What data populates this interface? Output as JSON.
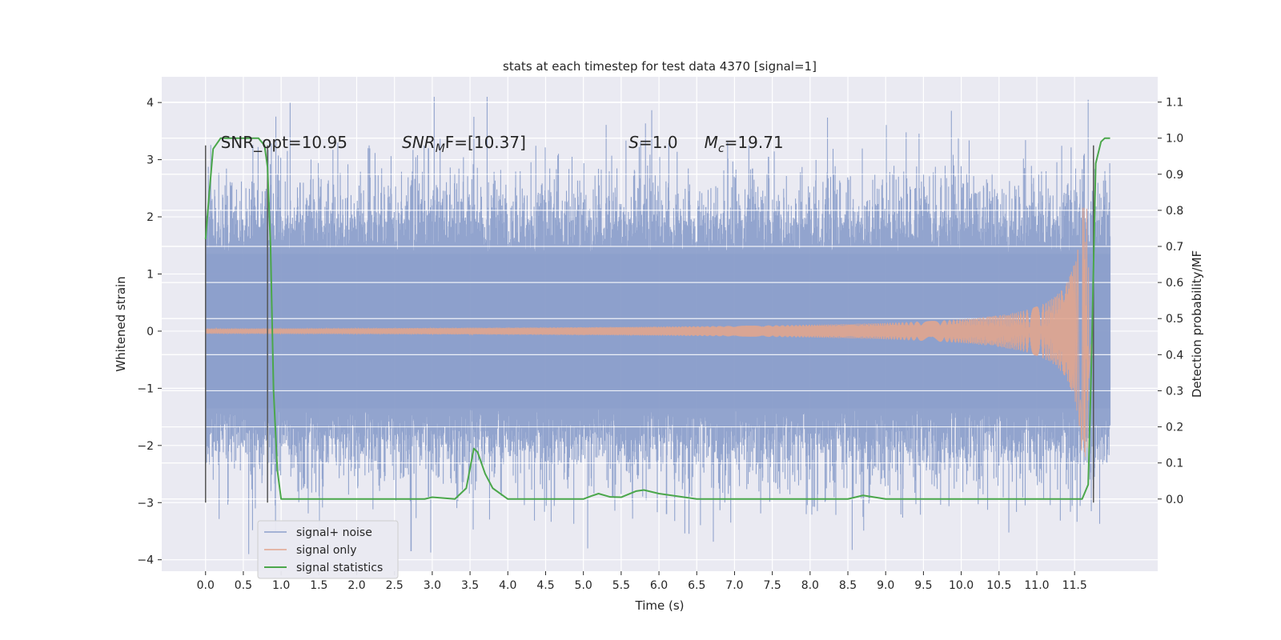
{
  "chart_data": {
    "type": "line",
    "title": "stats at each timestep for test data 4370 [signal=1]",
    "xlabel": "Time (s)",
    "ylabel": "Whitened strain",
    "ylabel_right": "Detection probability/MF",
    "xlim": [
      -0.58,
      12.6
    ],
    "ylim": [
      -4.2,
      4.45
    ],
    "ylim_right": [
      -0.2,
      1.17
    ],
    "x_ticks": [
      0.0,
      0.5,
      1.0,
      1.5,
      2.0,
      2.5,
      3.0,
      3.5,
      4.0,
      4.5,
      5.0,
      5.5,
      6.0,
      6.5,
      7.0,
      7.5,
      8.0,
      8.5,
      9.0,
      9.5,
      10.0,
      10.5,
      11.0,
      11.5
    ],
    "x_tick_labels": [
      "0.0",
      "0.5",
      "1.0",
      "1.5",
      "2.0",
      "2.5",
      "3.0",
      "3.5",
      "4.0",
      "4.5",
      "5.0",
      "5.5",
      "6.0",
      "6.5",
      "7.0",
      "7.5",
      "8.0",
      "8.5",
      "9.0",
      "9.5",
      "10.0",
      "10.5",
      "11.0",
      "11.5"
    ],
    "y_ticks": [
      -4,
      -3,
      -2,
      -1,
      0,
      1,
      2,
      3,
      4
    ],
    "y_tick_labels": [
      "−4",
      "−3",
      "−2",
      "−1",
      "0",
      "1",
      "2",
      "3",
      "4"
    ],
    "y_ticks_right": [
      0.0,
      0.1,
      0.2,
      0.3,
      0.4,
      0.5,
      0.6,
      0.7,
      0.8,
      0.9,
      1.0,
      1.1
    ],
    "y_tick_labels_right": [
      "0.0",
      "0.1",
      "0.2",
      "0.3",
      "0.4",
      "0.5",
      "0.6",
      "0.7",
      "0.8",
      "0.9",
      "1.0",
      "1.1"
    ],
    "grid": true,
    "legend_position": "lower-left",
    "annotations": [
      {
        "text": "SNR_opt=10.95",
        "x": 0.2,
        "y": 3.3
      },
      {
        "text": "SNR",
        "sub": "M",
        "rest": "F=[10.37]",
        "x": 2.6,
        "y": 3.3
      },
      {
        "text": "S",
        "rest": "=1.0",
        "x": 5.6,
        "y": 3.3
      },
      {
        "text": "M",
        "sub": "c",
        "rest": "=19.71",
        "x": 6.6,
        "y": 3.3
      }
    ],
    "series": [
      {
        "name": "signal+ noise",
        "color": "#8da0cb",
        "kind": "noise",
        "x_range": [
          0.0,
          11.97
        ],
        "core_amplitude": 1.35,
        "peaks": [
          {
            "x": 0.05,
            "y": 2.0
          },
          {
            "x": 0.35,
            "y": 2.6
          },
          {
            "x": 1.25,
            "y": 2.6
          },
          {
            "x": 1.75,
            "y": 3.3
          },
          {
            "x": 2.15,
            "y": 3.2
          },
          {
            "x": 2.95,
            "y": 3.2
          },
          {
            "x": 3.55,
            "y": 3.75
          },
          {
            "x": 4.85,
            "y": 3.05
          },
          {
            "x": 7.45,
            "y": 3.05
          },
          {
            "x": 9.9,
            "y": 2.9
          },
          {
            "x": 11.68,
            "y": 4.05
          },
          {
            "x": 11.9,
            "y": 2.8
          },
          {
            "x": 2.72,
            "y": -3.85
          },
          {
            "x": 6.1,
            "y": -3.2
          },
          {
            "x": 6.95,
            "y": -3.35
          },
          {
            "x": 7.95,
            "y": -3.2
          },
          {
            "x": 8.7,
            "y": -3.25
          },
          {
            "x": 11.72,
            "y": -3.15
          },
          {
            "x": 2.95,
            "y": -2.9
          },
          {
            "x": 0.1,
            "y": -2.6
          }
        ]
      },
      {
        "name": "signal only",
        "color": "#e1a58e",
        "kind": "chirp",
        "x_range": [
          0.0,
          11.72
        ],
        "peak_amplitude": 2.2,
        "peak_time": 11.67
      },
      {
        "name": "signal statistics",
        "color": "#4ba74b",
        "axis": "right",
        "x": [
          0.0,
          0.05,
          0.1,
          0.2,
          0.3,
          0.5,
          0.7,
          0.78,
          0.82,
          0.86,
          0.9,
          0.95,
          1.0,
          1.5,
          2.0,
          2.5,
          2.9,
          3.0,
          3.3,
          3.45,
          3.55,
          3.6,
          3.7,
          3.8,
          4.0,
          4.5,
          5.0,
          5.1,
          5.2,
          5.35,
          5.5,
          5.7,
          5.8,
          6.0,
          6.5,
          7.0,
          7.5,
          8.0,
          8.5,
          8.7,
          9.0,
          9.5,
          10.0,
          11.0,
          11.5,
          11.6,
          11.68,
          11.72,
          11.78,
          11.85,
          11.9,
          11.97
        ],
        "y": [
          0.72,
          0.85,
          0.97,
          1.0,
          1.0,
          1.0,
          1.0,
          0.98,
          0.92,
          0.7,
          0.3,
          0.08,
          0.0,
          0.0,
          0.0,
          0.0,
          0.0,
          0.005,
          0.0,
          0.03,
          0.14,
          0.13,
          0.07,
          0.03,
          0.0,
          0.0,
          0.0,
          0.008,
          0.015,
          0.006,
          0.005,
          0.022,
          0.025,
          0.015,
          0.0,
          0.0,
          0.0,
          0.0,
          0.0,
          0.01,
          0.0,
          0.0,
          0.0,
          0.0,
          0.0,
          0.0,
          0.04,
          0.35,
          0.93,
          0.99,
          1.0,
          1.0
        ]
      }
    ],
    "vertical_lines": [
      {
        "x": 0.0,
        "y_range": [
          -3.0,
          3.25
        ]
      },
      {
        "x": 0.82,
        "y_range": [
          -3.0,
          3.25
        ]
      },
      {
        "x": 11.75,
        "y_range": [
          -3.0,
          3.25
        ]
      }
    ]
  }
}
